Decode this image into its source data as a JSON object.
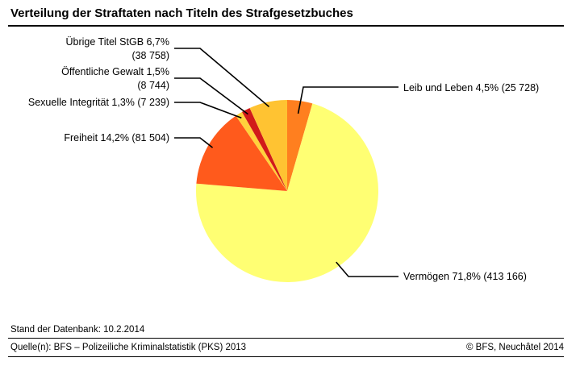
{
  "title": "Verteilung der Straftaten nach Titeln des Strafgesetzbuches",
  "footer": {
    "stand": "Stand der Datenbank: 10.2.2014",
    "source": "Quelle(n): BFS – Polizeiliche Kriminalstatistik (PKS) 2013",
    "copyright": "© BFS, Neuchâtel 2014"
  },
  "chart_data": {
    "type": "pie",
    "title": "Verteilung der Straftaten nach Titeln des Strafgesetzbuches",
    "start": "12 o'clock",
    "direction": "clockwise",
    "slices": [
      {
        "name": "Leib und Leben",
        "percent": 4.5,
        "value": 25728,
        "color": "#FF7F1F",
        "label_lines": [
          "Leib und Leben 4,5% (25 728)"
        ]
      },
      {
        "name": "Vermögen",
        "percent": 71.8,
        "value": 413166,
        "color": "#FFFF73",
        "label_lines": [
          "Vermögen 71,8% (413 166)"
        ]
      },
      {
        "name": "Freiheit",
        "percent": 14.2,
        "value": 81504,
        "color": "#FF5A1C",
        "label_lines": [
          "Freiheit 14,2% (81 504)"
        ]
      },
      {
        "name": "Sexuelle Integrität",
        "percent": 1.3,
        "value": 7239,
        "color": "#FFD23C",
        "label_lines": [
          "Sexuelle Integrität 1,3% (7 239)"
        ]
      },
      {
        "name": "Öffentliche Gewalt",
        "percent": 1.5,
        "value": 8744,
        "color": "#D11A1A",
        "label_lines": [
          "Öffentliche Gewalt 1,5%",
          "(8 744)"
        ]
      },
      {
        "name": "Übrige Titel StGB",
        "percent": 6.7,
        "value": 38758,
        "color": "#FFC332",
        "label_lines": [
          "Übrige Titel StGB 6,7%",
          "(38 758)"
        ]
      }
    ]
  }
}
